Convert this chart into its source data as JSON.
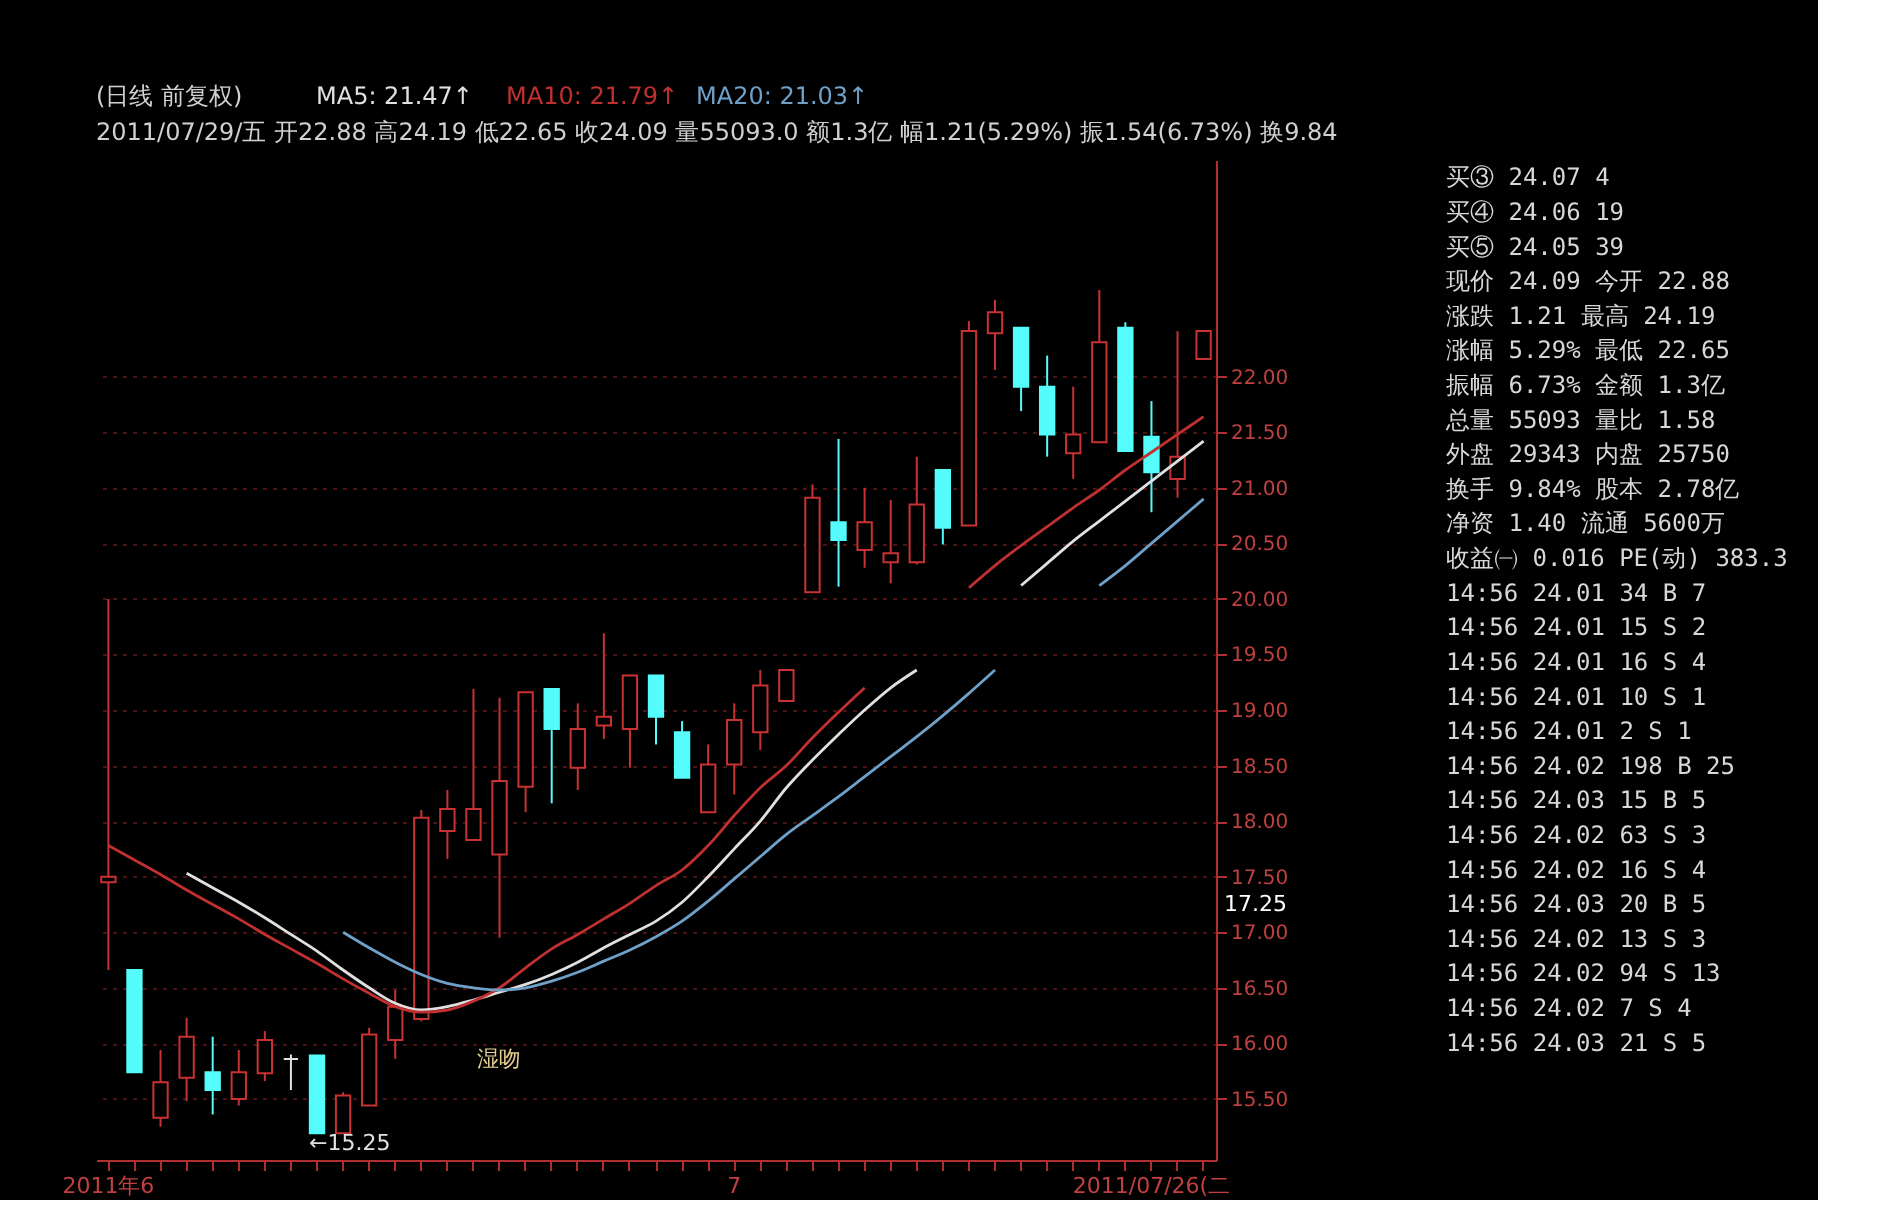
{
  "chart_data": [
    {
      "type": "candlestick",
      "title": "(日线 前复权)",
      "subtitle": "2011/07/29/五 开22.88 高24.19 低22.65 收24.09 量55093.0 额1.3亿 幅1.21(5.29%) 振1.54(6.73%) 换9.84",
      "categories": [
        "2011年6",
        null,
        null,
        null,
        null,
        null,
        null,
        null,
        null,
        null,
        null,
        null,
        null,
        null,
        null,
        null,
        null,
        null,
        null,
        null,
        null,
        null,
        null,
        null,
        "7",
        null,
        null,
        null,
        null,
        null,
        null,
        null,
        null,
        null,
        null,
        null,
        null,
        null,
        null,
        null,
        "2011/07/26(二",
        null,
        null
      ],
      "ohlc": [
        [
          17.45,
          20.0,
          16.66,
          17.5
        ],
        [
          16.66,
          16.66,
          15.74,
          15.74
        ],
        [
          15.33,
          15.94,
          15.25,
          15.65
        ],
        [
          15.69,
          16.23,
          15.48,
          16.06
        ],
        [
          15.74,
          16.06,
          15.36,
          15.58
        ],
        [
          15.5,
          15.94,
          15.44,
          15.74
        ],
        [
          15.73,
          16.11,
          15.66,
          16.03
        ],
        [
          15.86,
          15.9,
          15.58,
          15.86
        ],
        [
          15.89,
          15.89,
          15.19,
          15.19
        ],
        [
          15.19,
          15.56,
          15.19,
          15.53
        ],
        [
          15.44,
          16.14,
          15.44,
          16.08
        ],
        [
          16.03,
          16.48,
          15.86,
          16.33
        ],
        [
          16.22,
          18.1,
          16.2,
          18.03
        ],
        [
          17.91,
          18.28,
          17.66,
          18.11
        ],
        [
          17.83,
          19.19,
          17.83,
          18.11
        ],
        [
          17.7,
          19.11,
          16.95,
          18.36
        ],
        [
          18.31,
          19.16,
          18.08,
          19.16
        ],
        [
          19.19,
          19.19,
          18.16,
          18.83
        ],
        [
          18.48,
          19.06,
          18.28,
          18.83
        ],
        [
          18.86,
          19.69,
          18.74,
          18.94
        ],
        [
          18.83,
          19.31,
          18.48,
          19.31
        ],
        [
          19.31,
          19.31,
          18.69,
          18.94
        ],
        [
          18.8,
          18.9,
          18.39,
          18.39
        ],
        [
          18.08,
          18.69,
          18.08,
          18.51
        ],
        [
          18.51,
          19.06,
          18.24,
          18.91
        ],
        [
          18.8,
          19.36,
          18.64,
          19.22
        ],
        [
          19.08,
          19.36,
          19.08,
          19.36
        ],
        [
          20.06,
          21.03,
          20.06,
          20.91
        ],
        [
          20.69,
          21.44,
          20.11,
          20.53
        ],
        [
          20.44,
          21.0,
          20.28,
          20.69
        ],
        [
          20.33,
          20.89,
          20.14,
          20.41
        ],
        [
          20.33,
          21.28,
          20.31,
          20.85
        ],
        [
          21.16,
          21.16,
          20.49,
          20.64
        ],
        [
          20.66,
          22.5,
          20.66,
          22.41
        ],
        [
          22.39,
          22.69,
          22.06,
          22.58
        ],
        [
          22.44,
          22.44,
          21.69,
          21.91
        ],
        [
          21.91,
          22.19,
          21.28,
          21.48
        ],
        [
          21.31,
          21.91,
          21.08,
          21.48
        ],
        [
          21.41,
          22.78,
          21.41,
          22.31
        ],
        [
          22.44,
          22.49,
          21.33,
          21.33
        ],
        [
          21.46,
          21.78,
          20.78,
          21.14
        ],
        [
          21.08,
          22.41,
          20.91,
          21.28
        ],
        [
          22.16,
          22.41,
          22.16,
          22.41
        ]
      ],
      "colors": [
        "#c83232",
        "#54fcfc",
        "#c83232",
        "#c83232",
        "#54fcfc",
        "#c83232",
        "#c83232",
        "#e0e0e0",
        "#54fcfc",
        "#c83232",
        "#c83232",
        "#c83232",
        "#c83232",
        "#c83232",
        "#c83232",
        "#c83232",
        "#c83232",
        "#54fcfc",
        "#c83232",
        "#c83232",
        "#c83232",
        "#54fcfc",
        "#54fcfc",
        "#c83232",
        "#c83232",
        "#c83232",
        "#c83232",
        "#c83232",
        "#54fcfc",
        "#c83232",
        "#c83232",
        "#c83232",
        "#54fcfc",
        "#c83232",
        "#c83232",
        "#54fcfc",
        "#54fcfc",
        "#c83232",
        "#c83232",
        "#54fcfc",
        "#54fcfc",
        "#c83232",
        "#c83232"
      ],
      "series": [
        {
          "name": "MA5: 21.47↑",
          "type": "line",
          "color": "#e0e0e0",
          "values": [
            null,
            null,
            null,
            17.53,
            17.4,
            17.27,
            17.13,
            16.98,
            16.83,
            16.66,
            16.5,
            16.36,
            16.3,
            16.33,
            16.39,
            16.46,
            16.53,
            16.62,
            16.73,
            16.86,
            16.98,
            17.1,
            17.27,
            17.5,
            17.75,
            18.0,
            18.3,
            18.55,
            18.78,
            19.0,
            19.2,
            19.36,
            null,
            null,
            null,
            20.12,
            20.32,
            20.52,
            20.7,
            20.88,
            21.06,
            21.24,
            21.42
          ]
        },
        {
          "name": "MA10: 21.79↑",
          "type": "line",
          "color": "#c03030",
          "values": [
            17.78,
            17.65,
            17.52,
            17.38,
            17.25,
            17.12,
            16.98,
            16.85,
            16.72,
            16.58,
            16.45,
            16.33,
            16.28,
            16.3,
            16.38,
            16.5,
            16.68,
            16.85,
            16.98,
            17.12,
            17.26,
            17.42,
            17.56,
            17.78,
            18.05,
            18.3,
            18.5,
            18.75,
            18.98,
            19.2,
            null,
            null,
            null,
            20.1,
            20.3,
            20.48,
            20.65,
            20.82,
            20.98,
            21.16,
            21.32,
            21.48,
            21.64
          ]
        },
        {
          "name": "MA20: 21.03↑",
          "type": "line",
          "color": "#6fa0c8",
          "values": [
            null,
            null,
            null,
            null,
            null,
            null,
            null,
            null,
            null,
            17.0,
            16.86,
            16.73,
            16.62,
            16.54,
            16.5,
            16.48,
            16.5,
            16.56,
            16.64,
            16.74,
            16.84,
            16.96,
            17.1,
            17.28,
            17.48,
            17.68,
            17.88,
            18.05,
            18.22,
            18.4,
            18.58,
            18.76,
            18.95,
            19.15,
            19.36,
            null,
            null,
            null,
            20.12,
            20.3,
            20.5,
            20.7,
            20.9
          ]
        }
      ],
      "ylim": [
        14.95,
        23.95
      ],
      "yticks": [
        {
          "value": 15.5,
          "label": "15.50"
        },
        {
          "value": 16,
          "label": "16.00"
        },
        {
          "value": 16.5,
          "label": "16.50"
        },
        {
          "value": 17,
          "label": "17.00"
        },
        {
          "value": 17.5,
          "label": "17.50"
        },
        {
          "value": 18,
          "label": "18.00"
        },
        {
          "value": 18.5,
          "label": "18.50"
        },
        {
          "value": 19,
          "label": "19.00"
        },
        {
          "value": 19.5,
          "label": "19.50"
        },
        {
          "value": 20,
          "label": "20.00"
        },
        {
          "value": 20.5,
          "label": "20.50"
        },
        {
          "value": 21,
          "label": "21.00"
        },
        {
          "value": 21.5,
          "label": "21.50"
        },
        {
          "value": 22,
          "label": "22.00"
        }
      ],
      "grid": "y",
      "legend": "top left",
      "annotations": [
        "←15.25",
        "17.25",
        "湿吻"
      ]
    },
    {
      "type": "other",
      "annotations": [
        "买③ 24.07 4",
        "买④ 24.06 19",
        "买⑤ 24.05 39",
        "现价 24.09 今开 22.88",
        "涨跌 1.21 最高 24.19",
        "涨幅 5.29% 最低 22.65",
        "振幅 6.73% 金额 1.3亿",
        "总量 55093 量比 1.58",
        "外盘 29343 内盘 25750",
        "换手 9.84% 股本 2.78亿",
        "净资 1.40 流通 5600万",
        "收益㈠ 0.016 PE(动) 383.3",
        "14:56 24.01 34 B 7",
        "14:56 24.01 15 S 2",
        "14:56 24.01 16 S 4",
        "14:56 24.01 10 S 1",
        "14:56 24.01 2 S 1",
        "14:56 24.02 198 B 25",
        "14:56 24.03 15 B 5",
        "14:56 24.02 63 S 3",
        "14:56 24.02 16 S 4",
        "14:56 24.03 20 B 5",
        "14:56 24.02 13 S 3",
        "14:56 24.02 94 S 13",
        "14:56 24.02 7 S 4",
        "14:56 24.03 21 S 5"
      ]
    }
  ]
}
